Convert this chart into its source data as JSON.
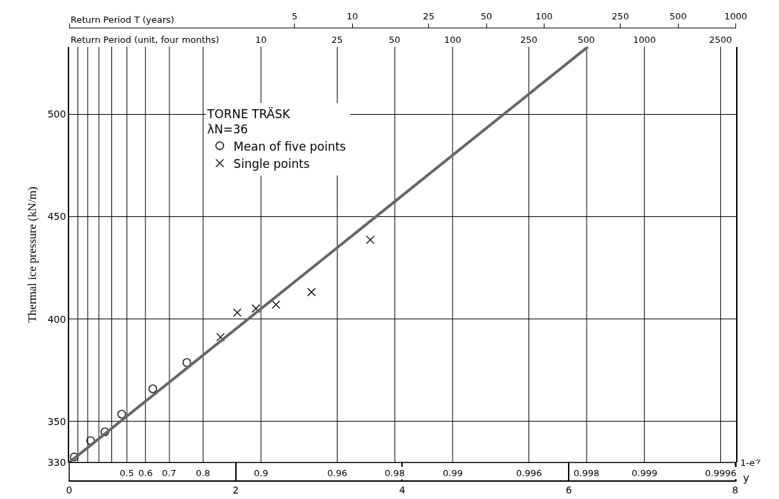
{
  "chart_data": {
    "type": "scatter",
    "ylabel": "Thermal ice pressure (kN/m)",
    "xlabel": "y",
    "x2label": "Return Period T (years)",
    "legend_title": "TORNE TRÄSK\nλN=36",
    "legend": "top left",
    "grid": "y",
    "log": "x2",
    "ylim": [
      330,
      533
    ],
    "yticks": [
      330,
      350,
      400,
      450,
      500
    ],
    "xlim": [
      0,
      8.01
    ],
    "xticks": [
      0,
      2,
      4,
      6,
      8
    ],
    "x2lim": [
      0.3333,
      1003.3
    ],
    "x2ticks": [
      {
        "value": 0.3333,
        "label": null
      },
      5,
      10,
      25,
      50,
      100,
      250,
      500,
      1000
    ],
    "ref_lines": [
      {
        "axis": "x",
        "value": 0.105,
        "label": null
      },
      {
        "axis": "x",
        "value": 0.223,
        "label": null
      },
      {
        "axis": "x",
        "value": 0.357,
        "label": null
      },
      {
        "axis": "x",
        "value": 0.511,
        "label": null
      },
      {
        "axis": "x",
        "value": 0.693,
        "label": null
      },
      {
        "axis": "x",
        "value": 0.916,
        "label": null
      },
      {
        "axis": "x",
        "value": 1.204,
        "label": null
      },
      {
        "axis": "x",
        "value": 1.609,
        "label": null
      },
      {
        "axis": "x",
        "value": 2.303,
        "label": null
      },
      {
        "axis": "x",
        "value": 3.219,
        "label": null
      },
      {
        "axis": "x",
        "value": 3.912,
        "label": null
      },
      {
        "axis": "x",
        "value": 4.605,
        "label": null
      },
      {
        "axis": "x",
        "value": 5.521,
        "label": null
      },
      {
        "axis": "x",
        "value": 6.215,
        "label": null
      },
      {
        "axis": "x",
        "value": 6.908,
        "label": null
      },
      {
        "axis": "x",
        "value": 7.824,
        "label": null
      }
    ],
    "annotations": [
      "Return Period (unit, four months)",
      "1-e$^{-y}$",
      {
        "text": "10",
        "x": 2.303,
        "y": 533
      },
      {
        "text": "25",
        "x": 3.219,
        "y": 533
      },
      {
        "text": "50",
        "x": 3.912,
        "y": 533
      },
      {
        "text": "100",
        "x": 4.605,
        "y": 533
      },
      {
        "text": "250",
        "x": 5.521,
        "y": 533
      },
      {
        "text": "500",
        "x": 6.215,
        "y": 533
      },
      {
        "text": "1000",
        "x": 6.908,
        "y": 533
      },
      {
        "text": "2500",
        "x": 7.824,
        "y": 533
      },
      {
        "text": "0.5",
        "x": 0.693,
        "y": 330
      },
      {
        "text": "0.6",
        "x": 0.916,
        "y": 330
      },
      {
        "text": "0.7",
        "x": 1.204,
        "y": 330
      },
      {
        "text": "0.8",
        "x": 1.609,
        "y": 330
      },
      {
        "text": "0.9",
        "x": 2.303,
        "y": 330
      },
      {
        "text": "0.96",
        "x": 3.219,
        "y": 330
      },
      {
        "text": "0.98",
        "x": 3.912,
        "y": 330
      },
      {
        "text": "0.99",
        "x": 4.605,
        "y": 330
      },
      {
        "text": "0.996",
        "x": 5.521,
        "y": 330
      },
      {
        "text": "0.998",
        "x": 6.215,
        "y": 330
      },
      {
        "text": "0.999",
        "x": 6.908,
        "y": 330
      },
      {
        "text": "0.9996",
        "x": 7.824,
        "y": 330
      }
    ],
    "series": [
      {
        "name": "Mean of five points",
        "marker": "circle",
        "color": "#222222",
        "x": [
          0.061,
          0.257,
          0.429,
          0.631,
          1.004,
          1.413
        ],
        "values": [
          332.7,
          340.7,
          345.0,
          353.6,
          366.0,
          378.8
        ]
      },
      {
        "name": "Single points",
        "marker": "cross",
        "color": "#222222",
        "x": [
          1.817,
          2.019,
          2.243,
          2.484,
          2.91,
          3.616
        ],
        "values": [
          391.2,
          403.2,
          405.2,
          407.1,
          413.2,
          438.7
        ]
      },
      {
        "type": "line",
        "color": "#666666",
        "x": [
          0,
          6.23
        ],
        "values": [
          330,
          533
        ]
      }
    ]
  }
}
